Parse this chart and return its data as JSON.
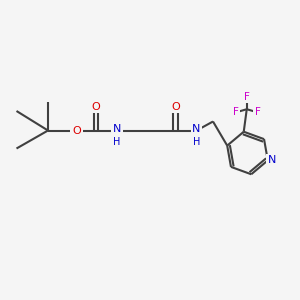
{
  "bg_color": "#f5f5f5",
  "bond_color": "#404040",
  "o_color": "#dd0000",
  "n_color": "#0000cc",
  "f_color": "#cc00cc",
  "lw": 1.5,
  "figsize": [
    3.0,
    3.0
  ],
  "dpi": 100,
  "xlim": [
    0,
    10
  ],
  "ylim": [
    0,
    10
  ]
}
